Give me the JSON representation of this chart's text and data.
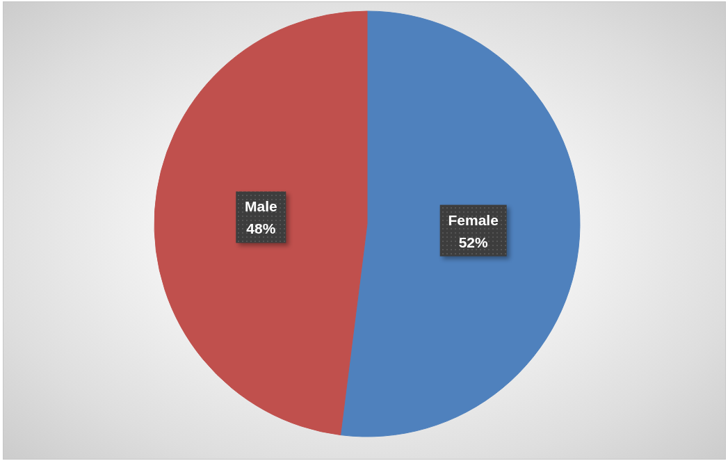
{
  "chart_data": {
    "type": "pie",
    "categories": [
      "Female",
      "Male"
    ],
    "values": [
      52,
      48
    ],
    "colors": [
      "#4f81bd",
      "#c0504d"
    ],
    "value_labels": [
      "52%",
      "48%"
    ]
  }
}
